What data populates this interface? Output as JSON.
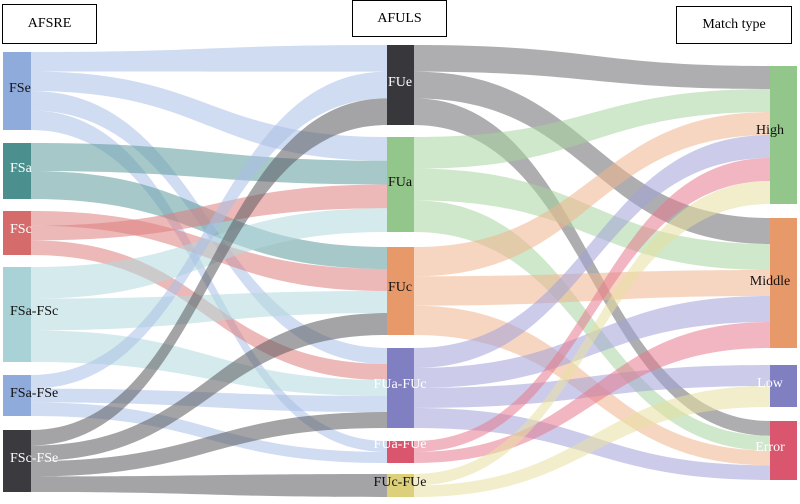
{
  "headers": {
    "left": "AFSRE",
    "middle": "AFULS",
    "right": "Match type"
  },
  "nodes": {
    "left": [
      {
        "id": "FSe",
        "label": "FSe",
        "color": "#8fabdc"
      },
      {
        "id": "FSa",
        "label": "FSa",
        "color": "#4b8f8f"
      },
      {
        "id": "FSc",
        "label": "FSc",
        "color": "#d66b6b"
      },
      {
        "id": "FSa-FSc",
        "label": "FSa-FSc",
        "color": "#a9d2d6"
      },
      {
        "id": "FSa-FSe",
        "label": "FSa-FSe",
        "color": "#8fabdc"
      },
      {
        "id": "FSc-FSe",
        "label": "FSc-FSe",
        "color": "#3a3a3f"
      }
    ],
    "middle": [
      {
        "id": "FUe",
        "label": "FUe",
        "color": "#38383c"
      },
      {
        "id": "FUa",
        "label": "FUa",
        "color": "#93c68a"
      },
      {
        "id": "FUc",
        "label": "FUc",
        "color": "#e8996a"
      },
      {
        "id": "FUa-FUc",
        "label": "FUa-FUc",
        "color": "#7f7fc2"
      },
      {
        "id": "FUa-FUe",
        "label": "FUa-FUe",
        "color": "#d9566e"
      },
      {
        "id": "FUc-FUe",
        "label": "FUc-FUe",
        "color": "#dcd07a"
      }
    ],
    "right": [
      {
        "id": "High",
        "label": "High",
        "color": "#93c68a"
      },
      {
        "id": "Middle",
        "label": "Middle",
        "color": "#e8996a"
      },
      {
        "id": "Low",
        "label": "Low",
        "color": "#7f7fc2"
      },
      {
        "id": "Error",
        "label": "Error",
        "color": "#d9566e"
      }
    ]
  },
  "links_stage1": [
    {
      "source": "FSe",
      "target": "FUe",
      "color": "#a9c0e6"
    },
    {
      "source": "FSe",
      "target": "FUa",
      "color": "#a9c0e6"
    },
    {
      "source": "FSe",
      "target": "FUa-FUc",
      "color": "#a9c0e6"
    },
    {
      "source": "FSe",
      "target": "FUa-FUe",
      "color": "#a9c0e6"
    },
    {
      "source": "FSa",
      "target": "FUa",
      "color": "#5e9a9c"
    },
    {
      "source": "FSa",
      "target": "FUc",
      "color": "#5e9a9c"
    },
    {
      "source": "FSc",
      "target": "FUc",
      "color": "#df7e7e"
    },
    {
      "source": "FSc",
      "target": "FUa",
      "color": "#df7e7e"
    },
    {
      "source": "FSc",
      "target": "FUa-FUc",
      "color": "#df7e7e"
    },
    {
      "source": "FSa-FSc",
      "target": "FUa",
      "color": "#b3d9dc"
    },
    {
      "source": "FSa-FSc",
      "target": "FUc",
      "color": "#b3d9dc"
    },
    {
      "source": "FSa-FSc",
      "target": "FUa-FUc",
      "color": "#b3d9dc"
    },
    {
      "source": "FSa-FSe",
      "target": "FUe",
      "color": "#a9c0e6"
    },
    {
      "source": "FSa-FSe",
      "target": "FUa-FUc",
      "color": "#a9c0e6"
    },
    {
      "source": "FSa-FSe",
      "target": "FUa-FUe",
      "color": "#a9c0e6"
    },
    {
      "source": "FSc-FSe",
      "target": "FUe",
      "color": "#5a5a5e"
    },
    {
      "source": "FSc-FSe",
      "target": "FUc",
      "color": "#5a5a5e"
    },
    {
      "source": "FSc-FSe",
      "target": "FUa-FUc",
      "color": "#5a5a5e"
    },
    {
      "source": "FSc-FSe",
      "target": "FUc-FUe",
      "color": "#5a5a5e"
    }
  ],
  "links_stage2": [
    {
      "source": "FUe",
      "target": "High",
      "color": "#6b6b70"
    },
    {
      "source": "FUe",
      "target": "Middle",
      "color": "#6b6b70"
    },
    {
      "source": "FUe",
      "target": "Error",
      "color": "#6b6b70"
    },
    {
      "source": "FUa",
      "target": "High",
      "color": "#a8d39e"
    },
    {
      "source": "FUa",
      "target": "Middle",
      "color": "#a8d39e"
    },
    {
      "source": "FUa",
      "target": "Error",
      "color": "#a8d39e"
    },
    {
      "source": "FUc",
      "target": "High",
      "color": "#f0b48e"
    },
    {
      "source": "FUc",
      "target": "Middle",
      "color": "#f0b48e"
    },
    {
      "source": "FUc",
      "target": "Error",
      "color": "#f0b48e"
    },
    {
      "source": "FUa-FUc",
      "target": "High",
      "color": "#a3a3d8"
    },
    {
      "source": "FUa-FUc",
      "target": "Middle",
      "color": "#a3a3d8"
    },
    {
      "source": "FUa-FUc",
      "target": "Low",
      "color": "#a3a3d8"
    },
    {
      "source": "FUa-FUc",
      "target": "Error",
      "color": "#a3a3d8"
    },
    {
      "source": "FUa-FUe",
      "target": "High",
      "color": "#e57a8e"
    },
    {
      "source": "FUa-FUe",
      "target": "Middle",
      "color": "#e57a8e"
    },
    {
      "source": "FUc-FUe",
      "target": "High",
      "color": "#e8e0a0"
    },
    {
      "source": "FUc-FUe",
      "target": "Low",
      "color": "#e8e0a0"
    }
  ]
}
